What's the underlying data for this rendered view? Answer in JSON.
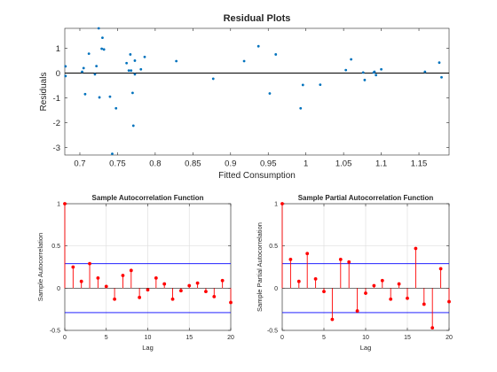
{
  "chart_data": [
    {
      "type": "scatter",
      "title": "Residual Plots",
      "xlabel": "Fitted Consumption",
      "ylabel": "Residuals",
      "xlim": [
        0.68,
        1.19
      ],
      "ylim": [
        -3.3,
        1.8
      ],
      "xticks": [
        0.7,
        0.75,
        0.8,
        0.85,
        0.9,
        0.95,
        1.0,
        1.05,
        1.1,
        1.15
      ],
      "xtick_labels": [
        "0.7",
        "0.75",
        "0.8",
        "0.85",
        "0.9",
        "0.95",
        "1",
        "1.05",
        "1.1",
        "1.15"
      ],
      "yticks": [
        -3,
        -2,
        -1,
        0,
        1
      ],
      "ytick_labels": [
        "-3",
        "-2",
        "-1",
        "0",
        "1"
      ],
      "zero_line": 0,
      "grid": false,
      "color": "#0072bd",
      "points": [
        [
          0.681,
          0.27
        ],
        [
          0.681,
          -0.12
        ],
        [
          0.703,
          0.05
        ],
        [
          0.705,
          0.2
        ],
        [
          0.707,
          -0.85
        ],
        [
          0.712,
          0.78
        ],
        [
          0.72,
          -0.05
        ],
        [
          0.722,
          0.28
        ],
        [
          0.725,
          1.8
        ],
        [
          0.726,
          -0.98
        ],
        [
          0.729,
          0.98
        ],
        [
          0.73,
          1.42
        ],
        [
          0.732,
          0.95
        ],
        [
          0.74,
          -0.95
        ],
        [
          0.743,
          -3.25
        ],
        [
          0.748,
          -1.42
        ],
        [
          0.762,
          0.4
        ],
        [
          0.765,
          0.1
        ],
        [
          0.767,
          0.75
        ],
        [
          0.768,
          0.1
        ],
        [
          0.77,
          -0.8
        ],
        [
          0.771,
          -2.12
        ],
        [
          0.773,
          0.5
        ],
        [
          0.773,
          -0.05
        ],
        [
          0.781,
          0.15
        ],
        [
          0.786,
          0.65
        ],
        [
          0.828,
          0.48
        ],
        [
          0.877,
          -0.23
        ],
        [
          0.918,
          0.48
        ],
        [
          0.937,
          1.08
        ],
        [
          0.952,
          -0.82
        ],
        [
          0.96,
          0.75
        ],
        [
          0.993,
          -1.42
        ],
        [
          0.996,
          -0.48
        ],
        [
          1.019,
          -0.47
        ],
        [
          1.053,
          0.12
        ],
        [
          1.06,
          0.55
        ],
        [
          1.076,
          0.02
        ],
        [
          1.078,
          -0.28
        ],
        [
          1.09,
          0.02
        ],
        [
          1.091,
          0.05
        ],
        [
          1.093,
          -0.08
        ],
        [
          1.1,
          0.15
        ],
        [
          1.158,
          0.05
        ],
        [
          1.177,
          0.42
        ],
        [
          1.18,
          -0.17
        ]
      ]
    },
    {
      "type": "stem",
      "title": "Sample Autocorrelation Function",
      "xlabel": "Lag",
      "ylabel": "Sample Autocorrelation",
      "xlim": [
        0,
        20
      ],
      "ylim": [
        -0.5,
        1
      ],
      "xticks": [
        0,
        5,
        10,
        15,
        20
      ],
      "yticks": [
        -0.5,
        0,
        0.5,
        1
      ],
      "ytick_labels": [
        "-0.5",
        "0",
        "0.5",
        "1"
      ],
      "bounds": [
        0.29,
        -0.29
      ],
      "grid": true,
      "color": "#ff0000",
      "bound_color": "#0000ff",
      "lags": [
        0,
        1,
        2,
        3,
        4,
        5,
        6,
        7,
        8,
        9,
        10,
        11,
        12,
        13,
        14,
        15,
        16,
        17,
        18,
        19,
        20
      ],
      "values": [
        1.0,
        0.25,
        0.08,
        0.29,
        0.12,
        0.02,
        -0.13,
        0.15,
        0.21,
        -0.11,
        -0.02,
        0.12,
        0.05,
        -0.13,
        -0.03,
        0.03,
        0.06,
        -0.04,
        -0.1,
        0.09,
        -0.17
      ]
    },
    {
      "type": "stem",
      "title": "Sample Partial Autocorrelation Function",
      "xlabel": "Lag",
      "ylabel": "Sample Partial Autocorrelation",
      "xlim": [
        0,
        20
      ],
      "ylim": [
        -0.5,
        1
      ],
      "xticks": [
        0,
        5,
        10,
        15,
        20
      ],
      "yticks": [
        -0.5,
        0,
        0.5,
        1
      ],
      "ytick_labels": [
        "-0.5",
        "0",
        "0.5",
        "1"
      ],
      "bounds": [
        0.29,
        -0.29
      ],
      "grid": true,
      "color": "#ff0000",
      "bound_color": "#0000ff",
      "lags": [
        0,
        1,
        2,
        3,
        4,
        5,
        6,
        7,
        8,
        9,
        10,
        11,
        12,
        13,
        14,
        15,
        16,
        17,
        18,
        19,
        20
      ],
      "values": [
        1.0,
        0.34,
        0.08,
        0.41,
        0.11,
        -0.04,
        -0.37,
        0.34,
        0.31,
        -0.27,
        -0.06,
        0.03,
        0.09,
        -0.13,
        0.05,
        -0.12,
        0.47,
        -0.19,
        -0.47,
        0.23,
        -0.16
      ]
    }
  ]
}
